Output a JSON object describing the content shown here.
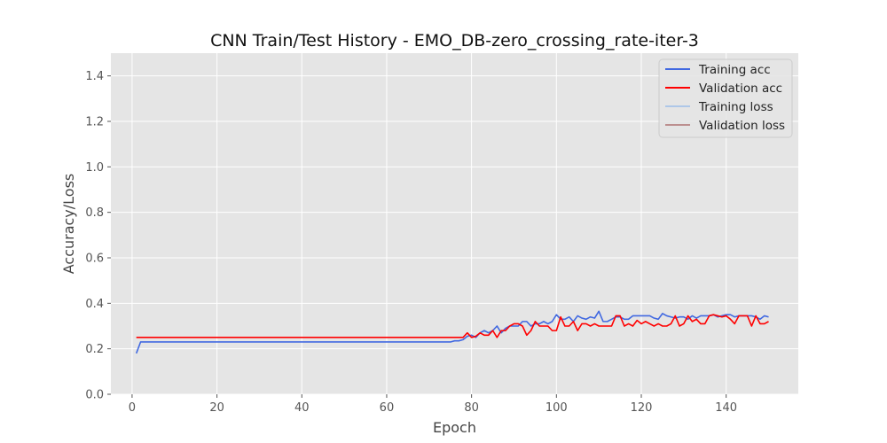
{
  "chart_data": {
    "type": "line",
    "title": "CNN Train/Test History -  EMO_DB-zero_crossing_rate-iter-3",
    "xlabel": "Epoch",
    "ylabel": "Accuracy/Loss",
    "xlim": [
      -5,
      157
    ],
    "ylim": [
      0,
      1.5
    ],
    "xticks": [
      0,
      20,
      40,
      60,
      80,
      100,
      120,
      140
    ],
    "yticks": [
      0.0,
      0.2,
      0.4,
      0.6,
      0.8,
      1.0,
      1.2,
      1.4
    ],
    "xtick_labels": [
      "0",
      "20",
      "40",
      "60",
      "80",
      "100",
      "120",
      "140"
    ],
    "ytick_labels": [
      "0.0",
      "0.2",
      "0.4",
      "0.6",
      "0.8",
      "1.0",
      "1.2",
      "1.4"
    ],
    "grid": true,
    "legend_position": "top-right",
    "series": [
      {
        "name": "Training acc",
        "color": "#4169e1",
        "opacity": 1,
        "points": [
          [
            1,
            0.18
          ],
          [
            2,
            0.23
          ],
          [
            10,
            0.23
          ],
          [
            20,
            0.23
          ],
          [
            30,
            0.23
          ],
          [
            40,
            0.23
          ],
          [
            50,
            0.23
          ],
          [
            60,
            0.23
          ],
          [
            70,
            0.23
          ],
          [
            75,
            0.23
          ],
          [
            76,
            0.235
          ],
          [
            77,
            0.235
          ],
          [
            78,
            0.24
          ],
          [
            79,
            0.255
          ],
          [
            80,
            0.26
          ],
          [
            81,
            0.25
          ],
          [
            82,
            0.27
          ],
          [
            83,
            0.28
          ],
          [
            84,
            0.27
          ],
          [
            85,
            0.28
          ],
          [
            86,
            0.3
          ],
          [
            87,
            0.27
          ],
          [
            88,
            0.29
          ],
          [
            89,
            0.3
          ],
          [
            90,
            0.3
          ],
          [
            91,
            0.3
          ],
          [
            92,
            0.32
          ],
          [
            93,
            0.32
          ],
          [
            94,
            0.3
          ],
          [
            95,
            0.31
          ],
          [
            96,
            0.31
          ],
          [
            97,
            0.32
          ],
          [
            98,
            0.31
          ],
          [
            99,
            0.32
          ],
          [
            100,
            0.35
          ],
          [
            101,
            0.33
          ],
          [
            102,
            0.33
          ],
          [
            103,
            0.34
          ],
          [
            104,
            0.32
          ],
          [
            105,
            0.345
          ],
          [
            106,
            0.335
          ],
          [
            107,
            0.33
          ],
          [
            108,
            0.34
          ],
          [
            109,
            0.335
          ],
          [
            110,
            0.365
          ],
          [
            111,
            0.32
          ],
          [
            112,
            0.32
          ],
          [
            113,
            0.33
          ],
          [
            114,
            0.34
          ],
          [
            115,
            0.34
          ],
          [
            116,
            0.33
          ],
          [
            117,
            0.33
          ],
          [
            118,
            0.345
          ],
          [
            119,
            0.345
          ],
          [
            120,
            0.345
          ],
          [
            121,
            0.345
          ],
          [
            122,
            0.345
          ],
          [
            123,
            0.335
          ],
          [
            124,
            0.33
          ],
          [
            125,
            0.355
          ],
          [
            126,
            0.345
          ],
          [
            127,
            0.34
          ],
          [
            128,
            0.335
          ],
          [
            129,
            0.34
          ],
          [
            130,
            0.34
          ],
          [
            131,
            0.33
          ],
          [
            132,
            0.345
          ],
          [
            133,
            0.335
          ],
          [
            134,
            0.345
          ],
          [
            135,
            0.345
          ],
          [
            136,
            0.345
          ],
          [
            137,
            0.35
          ],
          [
            138,
            0.34
          ],
          [
            139,
            0.345
          ],
          [
            140,
            0.35
          ],
          [
            141,
            0.35
          ],
          [
            142,
            0.34
          ],
          [
            143,
            0.345
          ],
          [
            144,
            0.345
          ],
          [
            145,
            0.345
          ],
          [
            146,
            0.345
          ],
          [
            147,
            0.34
          ],
          [
            148,
            0.33
          ],
          [
            149,
            0.345
          ],
          [
            150,
            0.34
          ]
        ]
      },
      {
        "name": "Validation acc",
        "color": "#ff0000",
        "opacity": 1,
        "points": [
          [
            1,
            0.25
          ],
          [
            10,
            0.25
          ],
          [
            20,
            0.25
          ],
          [
            30,
            0.25
          ],
          [
            40,
            0.25
          ],
          [
            50,
            0.25
          ],
          [
            60,
            0.25
          ],
          [
            70,
            0.25
          ],
          [
            78,
            0.25
          ],
          [
            79,
            0.27
          ],
          [
            80,
            0.25
          ],
          [
            81,
            0.255
          ],
          [
            82,
            0.27
          ],
          [
            83,
            0.26
          ],
          [
            84,
            0.26
          ],
          [
            85,
            0.28
          ],
          [
            86,
            0.25
          ],
          [
            87,
            0.28
          ],
          [
            88,
            0.28
          ],
          [
            89,
            0.3
          ],
          [
            90,
            0.31
          ],
          [
            91,
            0.31
          ],
          [
            92,
            0.3
          ],
          [
            93,
            0.26
          ],
          [
            94,
            0.28
          ],
          [
            95,
            0.32
          ],
          [
            96,
            0.3
          ],
          [
            97,
            0.3
          ],
          [
            98,
            0.3
          ],
          [
            99,
            0.28
          ],
          [
            100,
            0.28
          ],
          [
            101,
            0.34
          ],
          [
            102,
            0.3
          ],
          [
            103,
            0.3
          ],
          [
            104,
            0.32
          ],
          [
            105,
            0.28
          ],
          [
            106,
            0.31
          ],
          [
            107,
            0.31
          ],
          [
            108,
            0.3
          ],
          [
            109,
            0.31
          ],
          [
            110,
            0.3
          ],
          [
            111,
            0.3
          ],
          [
            112,
            0.3
          ],
          [
            113,
            0.3
          ],
          [
            114,
            0.345
          ],
          [
            115,
            0.345
          ],
          [
            116,
            0.3
          ],
          [
            117,
            0.31
          ],
          [
            118,
            0.3
          ],
          [
            119,
            0.325
          ],
          [
            120,
            0.31
          ],
          [
            121,
            0.32
          ],
          [
            122,
            0.31
          ],
          [
            123,
            0.3
          ],
          [
            124,
            0.31
          ],
          [
            125,
            0.3
          ],
          [
            126,
            0.3
          ],
          [
            127,
            0.31
          ],
          [
            128,
            0.345
          ],
          [
            129,
            0.3
          ],
          [
            130,
            0.31
          ],
          [
            131,
            0.345
          ],
          [
            132,
            0.32
          ],
          [
            133,
            0.33
          ],
          [
            134,
            0.31
          ],
          [
            135,
            0.31
          ],
          [
            136,
            0.345
          ],
          [
            137,
            0.35
          ],
          [
            138,
            0.345
          ],
          [
            139,
            0.34
          ],
          [
            140,
            0.345
          ],
          [
            141,
            0.33
          ],
          [
            142,
            0.31
          ],
          [
            143,
            0.345
          ],
          [
            144,
            0.345
          ],
          [
            145,
            0.345
          ],
          [
            146,
            0.3
          ],
          [
            147,
            0.345
          ],
          [
            148,
            0.31
          ],
          [
            149,
            0.31
          ],
          [
            150,
            0.32
          ]
        ]
      },
      {
        "name": "Training loss",
        "color": "#aec7e8",
        "opacity": 1,
        "points": []
      },
      {
        "name": "Validation loss",
        "color": "#bc8f8f",
        "opacity": 1,
        "points": []
      }
    ]
  }
}
